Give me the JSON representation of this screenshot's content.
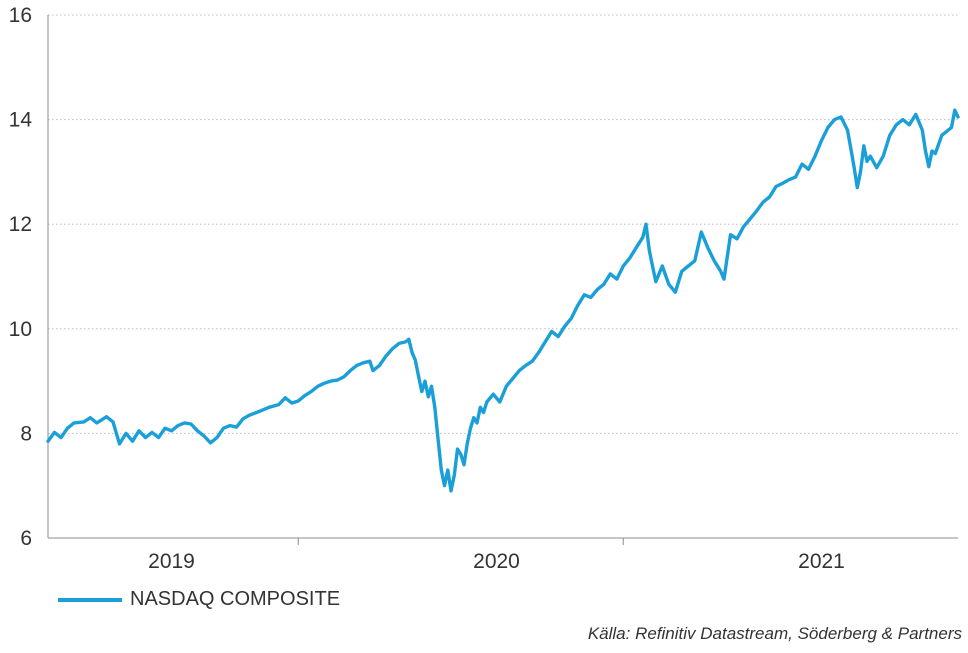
{
  "chart_data": {
    "type": "line",
    "title": "",
    "xlabel": "",
    "ylabel": "",
    "ylim": [
      6,
      16
    ],
    "yticks": [
      6,
      8,
      10,
      12,
      14,
      16
    ],
    "ytick_labels": [
      "6",
      "8",
      "10",
      "12",
      "14",
      "16"
    ],
    "xlim": [
      2018.55,
      2021.35
    ],
    "year_labels": [
      {
        "label": "2019",
        "x": 2018.93
      },
      {
        "label": "2020",
        "x": 2019.93
      },
      {
        "label": "2021",
        "x": 2020.93
      }
    ],
    "year_boundaries": [
      2019.32,
      2020.32
    ],
    "grid": "horizontal-dotted",
    "legend_position": "bottom-left",
    "color": "#1a9fd8",
    "series": [
      {
        "name": "NASDAQ COMPOSITE",
        "points": [
          [
            2018.55,
            7.85
          ],
          [
            2018.57,
            8.02
          ],
          [
            2018.59,
            7.92
          ],
          [
            2018.61,
            8.1
          ],
          [
            2018.63,
            8.2
          ],
          [
            2018.66,
            8.22
          ],
          [
            2018.68,
            8.3
          ],
          [
            2018.7,
            8.2
          ],
          [
            2018.72,
            8.28
          ],
          [
            2018.73,
            8.32
          ],
          [
            2018.75,
            8.22
          ],
          [
            2018.77,
            7.8
          ],
          [
            2018.79,
            8.0
          ],
          [
            2018.81,
            7.85
          ],
          [
            2018.83,
            8.05
          ],
          [
            2018.85,
            7.92
          ],
          [
            2018.87,
            8.02
          ],
          [
            2018.89,
            7.92
          ],
          [
            2018.91,
            8.1
          ],
          [
            2018.93,
            8.05
          ],
          [
            2018.95,
            8.15
          ],
          [
            2018.97,
            8.2
          ],
          [
            2018.99,
            8.18
          ],
          [
            2019.01,
            8.05
          ],
          [
            2019.03,
            7.95
          ],
          [
            2019.05,
            7.82
          ],
          [
            2019.07,
            7.92
          ],
          [
            2019.09,
            8.1
          ],
          [
            2019.11,
            8.15
          ],
          [
            2019.13,
            8.12
          ],
          [
            2019.15,
            8.28
          ],
          [
            2019.17,
            8.35
          ],
          [
            2019.2,
            8.42
          ],
          [
            2019.23,
            8.5
          ],
          [
            2019.26,
            8.55
          ],
          [
            2019.28,
            8.68
          ],
          [
            2019.3,
            8.58
          ],
          [
            2019.32,
            8.62
          ],
          [
            2019.34,
            8.72
          ],
          [
            2019.36,
            8.8
          ],
          [
            2019.38,
            8.9
          ],
          [
            2019.4,
            8.96
          ],
          [
            2019.42,
            9.0
          ],
          [
            2019.44,
            9.02
          ],
          [
            2019.46,
            9.08
          ],
          [
            2019.48,
            9.2
          ],
          [
            2019.5,
            9.3
          ],
          [
            2019.52,
            9.35
          ],
          [
            2019.54,
            9.38
          ],
          [
            2019.55,
            9.2
          ],
          [
            2019.57,
            9.3
          ],
          [
            2019.59,
            9.48
          ],
          [
            2019.61,
            9.62
          ],
          [
            2019.63,
            9.72
          ],
          [
            2019.65,
            9.75
          ],
          [
            2019.66,
            9.8
          ],
          [
            2019.67,
            9.55
          ],
          [
            2019.68,
            9.4
          ],
          [
            2019.69,
            9.1
          ],
          [
            2019.7,
            8.8
          ],
          [
            2019.71,
            9.0
          ],
          [
            2019.72,
            8.7
          ],
          [
            2019.73,
            8.9
          ],
          [
            2019.74,
            8.5
          ],
          [
            2019.75,
            7.9
          ],
          [
            2019.76,
            7.3
          ],
          [
            2019.77,
            7.0
          ],
          [
            2019.78,
            7.3
          ],
          [
            2019.79,
            6.9
          ],
          [
            2019.8,
            7.2
          ],
          [
            2019.81,
            7.7
          ],
          [
            2019.82,
            7.6
          ],
          [
            2019.83,
            7.4
          ],
          [
            2019.84,
            7.8
          ],
          [
            2019.85,
            8.1
          ],
          [
            2019.86,
            8.3
          ],
          [
            2019.87,
            8.2
          ],
          [
            2019.88,
            8.5
          ],
          [
            2019.89,
            8.4
          ],
          [
            2019.9,
            8.6
          ],
          [
            2019.92,
            8.75
          ],
          [
            2019.94,
            8.6
          ],
          [
            2019.96,
            8.9
          ],
          [
            2019.98,
            9.05
          ],
          [
            2020.0,
            9.2
          ],
          [
            2020.02,
            9.3
          ],
          [
            2020.04,
            9.38
          ],
          [
            2020.06,
            9.55
          ],
          [
            2020.08,
            9.75
          ],
          [
            2020.1,
            9.95
          ],
          [
            2020.12,
            9.85
          ],
          [
            2020.14,
            10.05
          ],
          [
            2020.16,
            10.2
          ],
          [
            2020.18,
            10.45
          ],
          [
            2020.2,
            10.65
          ],
          [
            2020.22,
            10.6
          ],
          [
            2020.24,
            10.75
          ],
          [
            2020.26,
            10.85
          ],
          [
            2020.28,
            11.05
          ],
          [
            2020.3,
            10.95
          ],
          [
            2020.32,
            11.2
          ],
          [
            2020.34,
            11.35
          ],
          [
            2020.36,
            11.55
          ],
          [
            2020.38,
            11.75
          ],
          [
            2020.39,
            12.0
          ],
          [
            2020.4,
            11.5
          ],
          [
            2020.41,
            11.2
          ],
          [
            2020.42,
            10.9
          ],
          [
            2020.44,
            11.2
          ],
          [
            2020.46,
            10.85
          ],
          [
            2020.48,
            10.7
          ],
          [
            2020.5,
            11.1
          ],
          [
            2020.52,
            11.2
          ],
          [
            2020.54,
            11.3
          ],
          [
            2020.56,
            11.85
          ],
          [
            2020.58,
            11.55
          ],
          [
            2020.6,
            11.3
          ],
          [
            2020.62,
            11.1
          ],
          [
            2020.63,
            10.95
          ],
          [
            2020.65,
            11.8
          ],
          [
            2020.67,
            11.72
          ],
          [
            2020.69,
            11.95
          ],
          [
            2020.71,
            12.1
          ],
          [
            2020.73,
            12.25
          ],
          [
            2020.75,
            12.42
          ],
          [
            2020.77,
            12.52
          ],
          [
            2020.79,
            12.72
          ],
          [
            2020.81,
            12.78
          ],
          [
            2020.83,
            12.85
          ],
          [
            2020.85,
            12.9
          ],
          [
            2020.87,
            13.15
          ],
          [
            2020.89,
            13.05
          ],
          [
            2020.91,
            13.3
          ],
          [
            2020.93,
            13.6
          ],
          [
            2020.95,
            13.85
          ],
          [
            2020.97,
            14.0
          ],
          [
            2020.99,
            14.05
          ],
          [
            2021.01,
            13.8
          ],
          [
            2021.02,
            13.45
          ],
          [
            2021.03,
            13.1
          ],
          [
            2021.04,
            12.7
          ],
          [
            2021.05,
            13.0
          ],
          [
            2021.06,
            13.5
          ],
          [
            2021.07,
            13.2
          ],
          [
            2021.08,
            13.3
          ],
          [
            2021.1,
            13.08
          ],
          [
            2021.12,
            13.3
          ],
          [
            2021.14,
            13.7
          ],
          [
            2021.16,
            13.9
          ],
          [
            2021.18,
            14.0
          ],
          [
            2021.2,
            13.9
          ],
          [
            2021.22,
            14.1
          ],
          [
            2021.24,
            13.8
          ],
          [
            2021.25,
            13.4
          ],
          [
            2021.26,
            13.1
          ],
          [
            2021.27,
            13.4
          ],
          [
            2021.28,
            13.35
          ],
          [
            2021.3,
            13.7
          ],
          [
            2021.32,
            13.8
          ],
          [
            2021.33,
            13.85
          ],
          [
            2021.34,
            14.18
          ],
          [
            2021.35,
            14.05
          ]
        ]
      }
    ]
  },
  "legend": {
    "label": "NASDAQ COMPOSITE"
  },
  "source": {
    "text": "Källa: Refinitiv Datastream, Söderberg & Partners"
  }
}
